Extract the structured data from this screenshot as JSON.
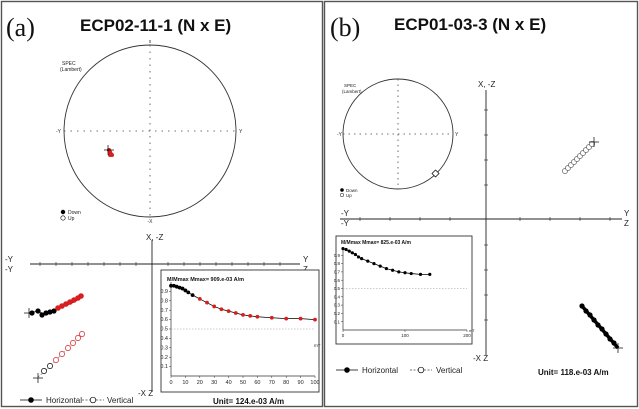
{
  "panel_a": {
    "letter": "(a)",
    "title": "ECP02-11-1 (N x E)",
    "stereo_label_1": "SPEC",
    "stereo_label_2": "(Lambert)",
    "stereo_axis_top": "x",
    "stereo_axis_left": "-Y",
    "stereo_axis_right": "Y",
    "stereo_axis_bottom": "-X",
    "legend_down": "Down",
    "legend_up": "Up",
    "zij_axis_top": "X, -Z",
    "zij_axis_left_1": "-Y",
    "zij_axis_left_2": "-Y",
    "zij_axis_right_1": "Y",
    "zij_axis_right_2": "Z",
    "zij_axis_bottom": "-X Z",
    "legend_horizontal": "Horizontal",
    "legend_vertical": "Vertical",
    "unit": "Unit=  124.e-03 A/m",
    "decay_header": "M/Mmax  Mmax= 909.e-03 A/m",
    "decay_unit": "mT",
    "colors": {
      "down": "#000000",
      "up_red": "#d81e1e"
    }
  },
  "panel_b": {
    "letter": "(b)",
    "title": "ECP01-03-3 (N x E)",
    "stereo_label_1": "SPEC",
    "stereo_label_2": "(Lambert)",
    "stereo_axis_left": "-Y",
    "stereo_axis_right": "Y",
    "legend_down": "Down",
    "legend_up": "Up",
    "zij_axis_top": "X, -Z",
    "zij_axis_left_1": "-Y",
    "zij_axis_left_2": "-Y",
    "zij_axis_right_1": "Y",
    "zij_axis_right_2": "Z",
    "zij_axis_bottom": "-X Z",
    "legend_horizontal": "Horizontal",
    "legend_vertical": "Vertical",
    "unit": "Unit=  118.e-03 A/m",
    "decay_header": "M/Mmax  Mmax= 825.e-03 A/m",
    "decay_unit": "mT"
  },
  "chart_data": [
    {
      "type": "line",
      "panel": "a",
      "ylabel": "M/Mmax",
      "xlim": [
        0,
        100
      ],
      "ylim": [
        0,
        1.0
      ],
      "xticks": [
        0,
        10,
        20,
        30,
        40,
        50,
        60,
        70,
        80,
        90,
        100
      ],
      "yticks": [
        0.1,
        0.2,
        0.3,
        0.4,
        0.5,
        0.6,
        0.7,
        0.8,
        0.9
      ],
      "x": [
        0,
        2,
        4,
        6,
        8,
        10,
        12,
        15,
        20,
        25,
        30,
        35,
        40,
        45,
        50,
        55,
        60,
        70,
        80,
        90,
        100
      ],
      "y": [
        0.96,
        0.96,
        0.95,
        0.94,
        0.93,
        0.91,
        0.89,
        0.86,
        0.82,
        0.78,
        0.74,
        0.71,
        0.69,
        0.67,
        0.65,
        0.64,
        0.63,
        0.62,
        0.61,
        0.61,
        0.6
      ],
      "reference_line": 0.5
    },
    {
      "type": "line",
      "panel": "b",
      "ylabel": "M/Mmax",
      "xlim": [
        0,
        200
      ],
      "ylim": [
        0,
        1.0
      ],
      "xticks": [
        0,
        100,
        200
      ],
      "yticks": [
        0.1,
        0.2,
        0.3,
        0.4,
        0.5,
        0.6,
        0.7,
        0.8,
        0.9
      ],
      "x": [
        0,
        5,
        10,
        15,
        20,
        25,
        30,
        40,
        50,
        60,
        70,
        80,
        90,
        100,
        110,
        125,
        140
      ],
      "y": [
        0.98,
        0.97,
        0.95,
        0.93,
        0.91,
        0.88,
        0.86,
        0.83,
        0.8,
        0.77,
        0.74,
        0.72,
        0.7,
        0.69,
        0.68,
        0.67,
        0.67
      ],
      "reference_line": 0.5
    }
  ]
}
